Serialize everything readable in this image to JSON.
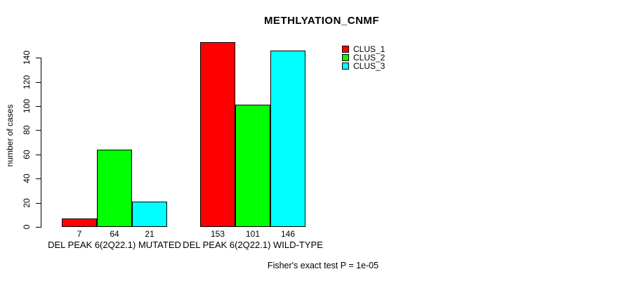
{
  "chart": {
    "title": "METHLYATION_CNMF",
    "footer": "Fisher's exact test P = 1e-05"
  },
  "chart_data": {
    "type": "bar",
    "title": "METHLYATION_CNMF",
    "xlabel": "",
    "ylabel": "number of cases",
    "ylim": [
      0,
      140
    ],
    "yticks": [
      0,
      20,
      40,
      60,
      80,
      100,
      120,
      140
    ],
    "grid": false,
    "legend_position": "top-right",
    "bar_border_color": "#000000",
    "background_color": "#ffffff",
    "categories": [
      "DEL PEAK 6(2Q22.1) MUTATED",
      "DEL PEAK 6(2Q22.1) WILD-TYPE"
    ],
    "series": [
      {
        "name": "CLUS_1",
        "color": "#ff0000",
        "values": [
          7,
          153
        ]
      },
      {
        "name": "CLUS_2",
        "color": "#00ff00",
        "values": [
          64,
          101
        ]
      },
      {
        "name": "CLUS_3",
        "color": "#00ffff",
        "values": [
          21,
          146
        ]
      }
    ],
    "annotation": "Fisher's exact test P = 1e-05"
  }
}
